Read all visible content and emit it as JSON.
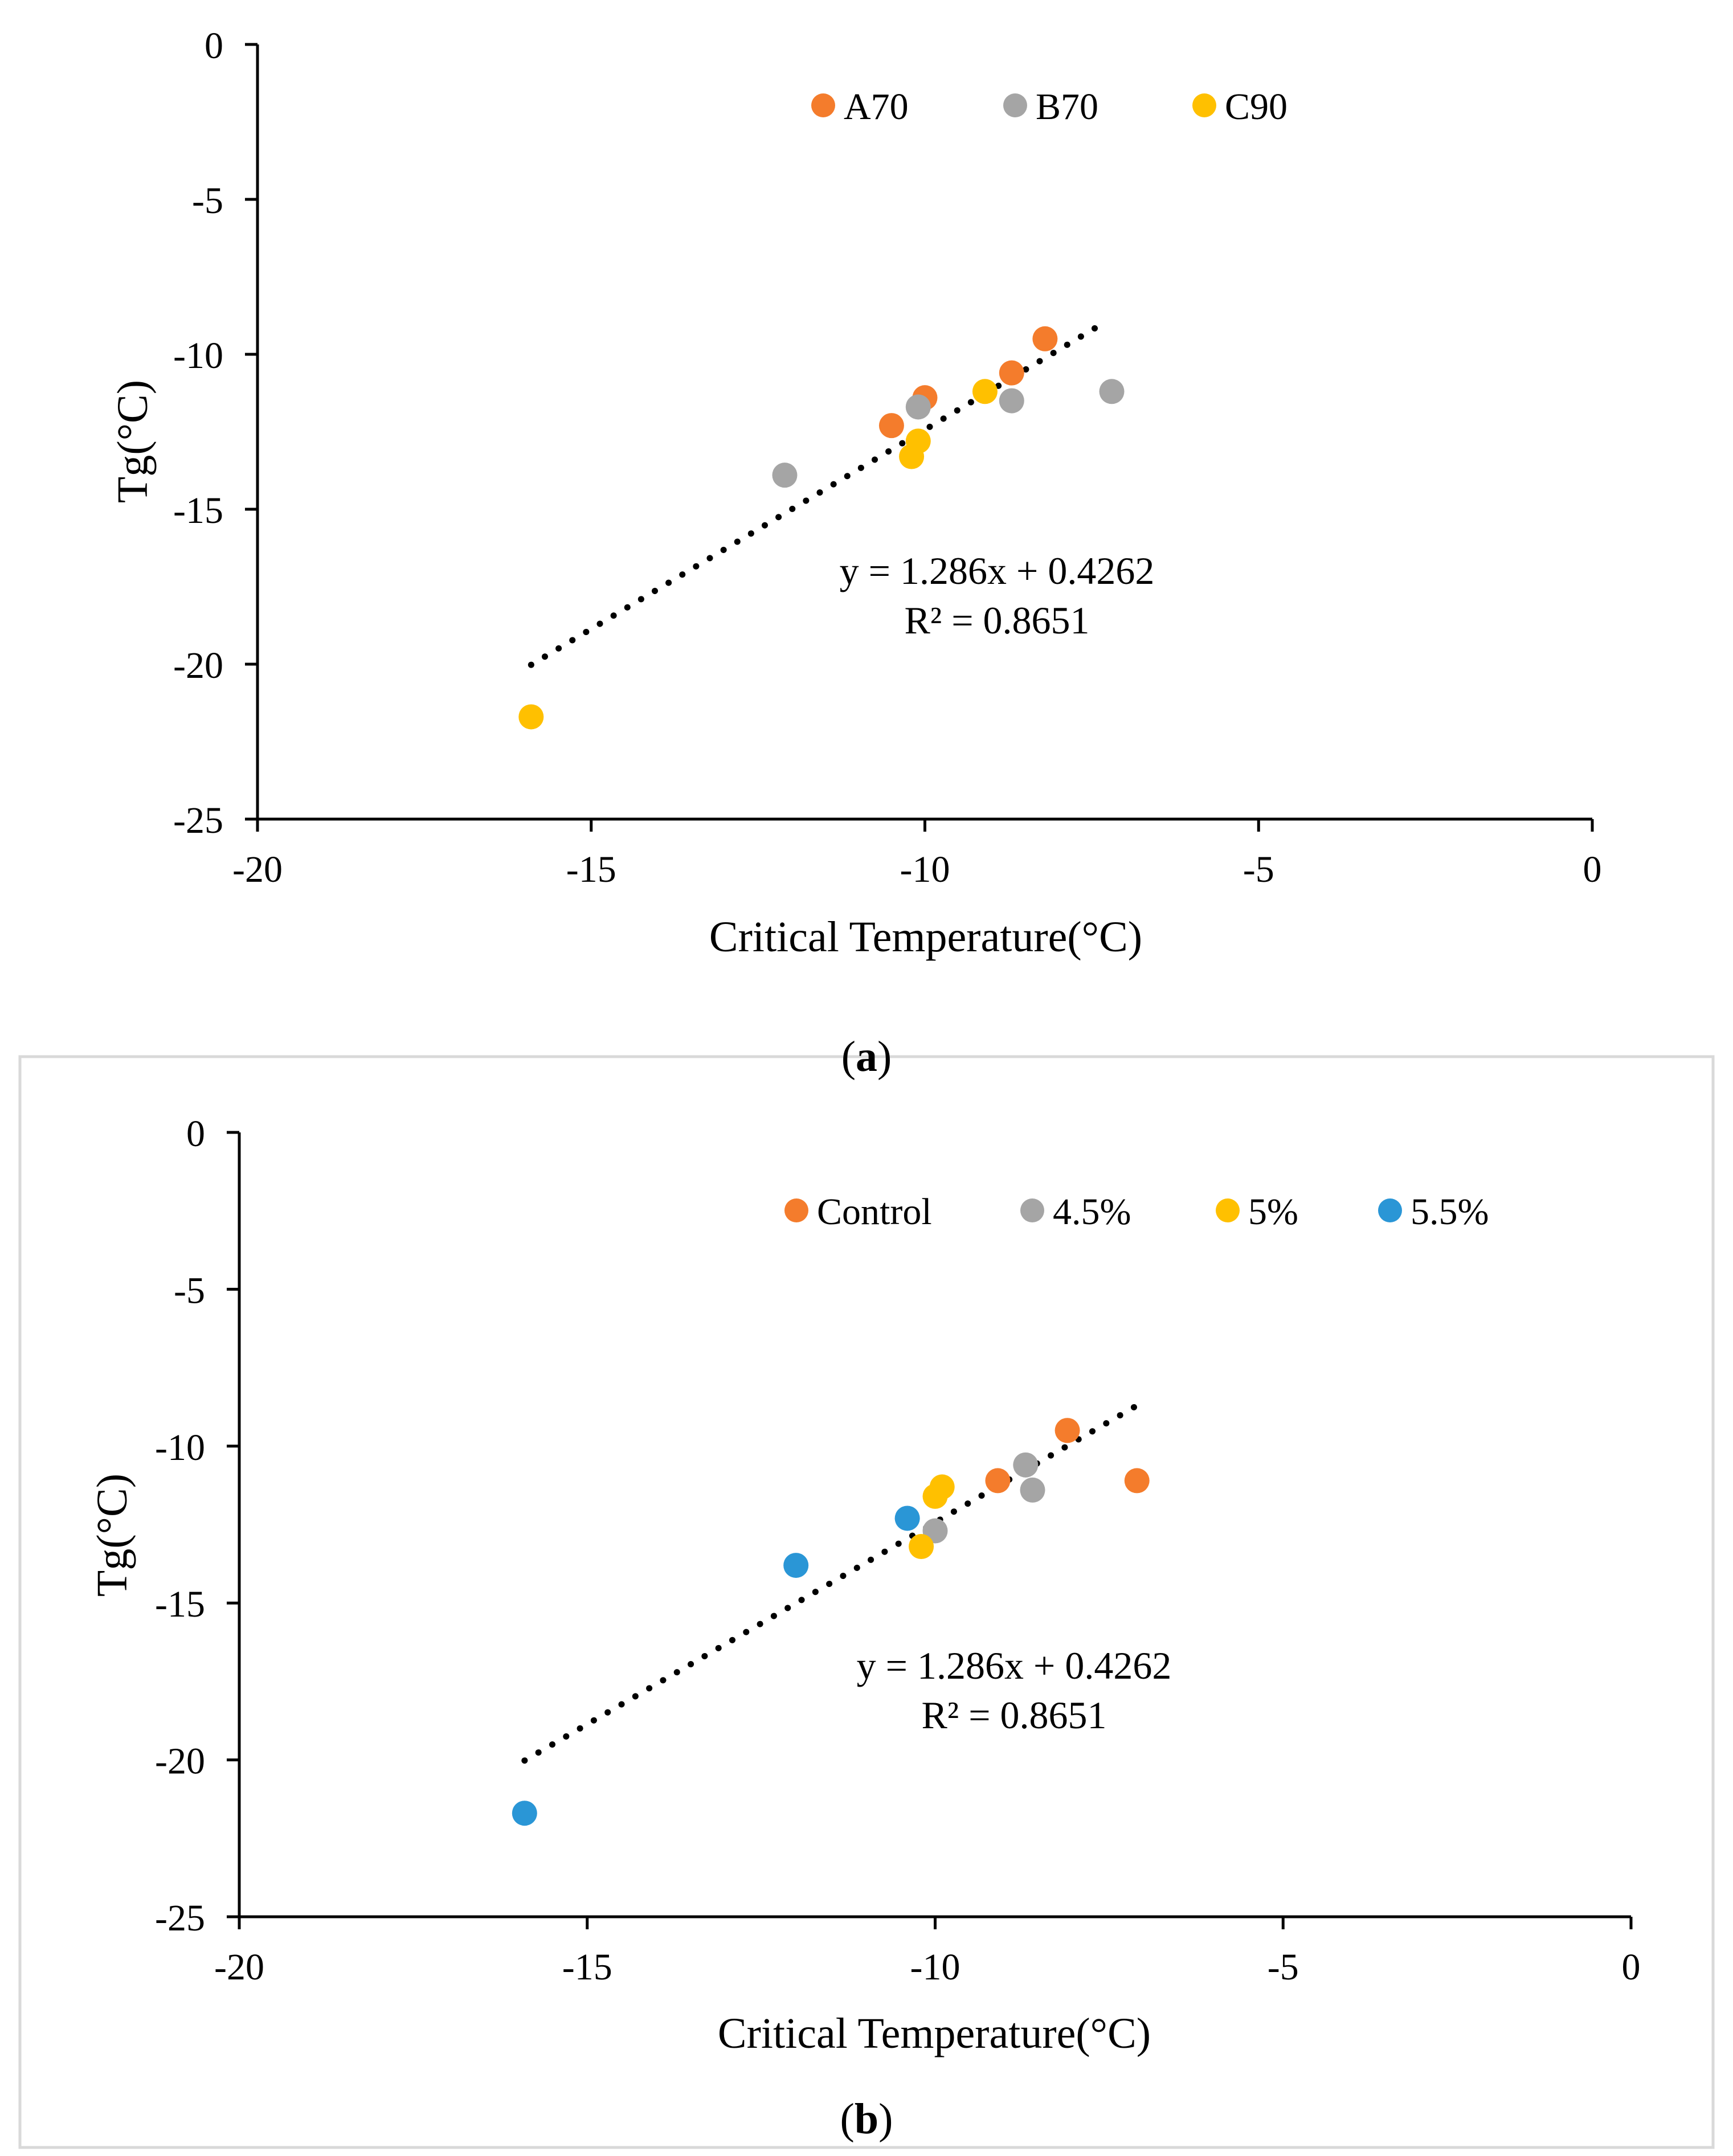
{
  "colors": {
    "orange": "#F47C2C",
    "gray": "#A5A5A5",
    "yellow": "#FFC000",
    "blue": "#2A96D6",
    "axis": "#000000",
    "panel_border": "#D9D9D9"
  },
  "chart_data": [
    {
      "type": "scatter",
      "panel_label": "a",
      "xlabel": "Critical Temperature(°C)",
      "ylabel": "Tg(°C)",
      "xlim": [
        -20,
        0
      ],
      "ylim": [
        -25,
        0
      ],
      "xticks": [
        -20,
        -15,
        -10,
        -5,
        0
      ],
      "yticks": [
        0,
        -5,
        -10,
        -15,
        -20,
        -25
      ],
      "legend_position": "top-center",
      "series": [
        {
          "name": "A70",
          "color": "#F47C2C",
          "points": [
            [
              -10.5,
              -12.3
            ],
            [
              -10.0,
              -11.4
            ],
            [
              -8.7,
              -10.6
            ],
            [
              -8.2,
              -9.5
            ]
          ]
        },
        {
          "name": "B70",
          "color": "#A5A5A5",
          "points": [
            [
              -12.1,
              -13.9
            ],
            [
              -10.1,
              -11.7
            ],
            [
              -8.7,
              -11.5
            ],
            [
              -7.2,
              -11.2
            ]
          ]
        },
        {
          "name": "C90",
          "color": "#FFC000",
          "points": [
            [
              -15.9,
              -21.7
            ],
            [
              -10.2,
              -13.3
            ],
            [
              -10.1,
              -12.8
            ],
            [
              -9.1,
              -11.2
            ]
          ]
        }
      ],
      "trendline": {
        "style": "dotted",
        "x_range": [
          -15.9,
          -7.3
        ],
        "slope": 1.286,
        "intercept": 0.4262
      },
      "annotation": {
        "equation": "y = 1.286x + 0.4262",
        "r2": "R² = 0.8651"
      }
    },
    {
      "type": "scatter",
      "panel_label": "b",
      "xlabel": "Critical Temperature(°C)",
      "ylabel": "Tg(°C)",
      "xlim": [
        -20,
        0
      ],
      "ylim": [
        -25,
        0
      ],
      "xticks": [
        -20,
        -15,
        -10,
        -5,
        0
      ],
      "yticks": [
        0,
        -5,
        -10,
        -15,
        -20,
        -25
      ],
      "legend_position": "top-right",
      "series": [
        {
          "name": "Control",
          "color": "#F47C2C",
          "points": [
            [
              -9.1,
              -11.1
            ],
            [
              -8.1,
              -9.5
            ],
            [
              -7.1,
              -11.1
            ]
          ]
        },
        {
          "name": "4.5%",
          "color": "#A5A5A5",
          "points": [
            [
              -10.0,
              -12.7
            ],
            [
              -8.7,
              -10.6
            ],
            [
              -8.6,
              -11.4
            ]
          ]
        },
        {
          "name": "5%",
          "color": "#FFC000",
          "points": [
            [
              -10.2,
              -13.2
            ],
            [
              -10.0,
              -11.6
            ],
            [
              -9.9,
              -11.3
            ]
          ]
        },
        {
          "name": "5.5%",
          "color": "#2A96D6",
          "points": [
            [
              -15.9,
              -21.7
            ],
            [
              -12.0,
              -13.8
            ],
            [
              -10.4,
              -12.3
            ]
          ]
        }
      ],
      "trendline": {
        "style": "dotted",
        "x_range": [
          -15.9,
          -7.1
        ],
        "slope": 1.286,
        "intercept": 0.4262
      },
      "annotation": {
        "equation": "y = 1.286x + 0.4262",
        "r2": "R² = 0.8651"
      }
    }
  ]
}
